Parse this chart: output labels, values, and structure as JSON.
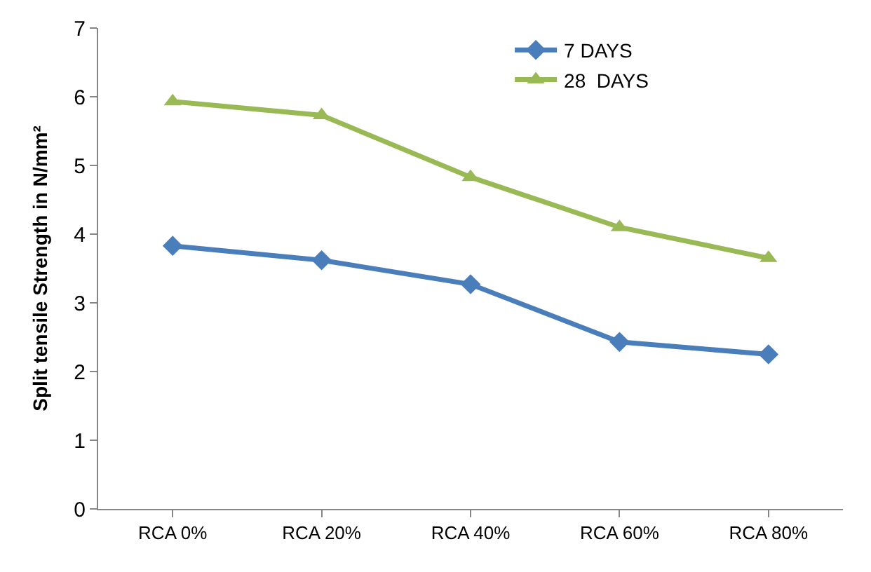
{
  "chart_data": {
    "type": "line",
    "ylabel": "Split tensile Strength in N/mm²",
    "categories": [
      "RCA 0%",
      "RCA 20%",
      "RCA 40%",
      "RCA 60%",
      "RCA 80%"
    ],
    "series": [
      {
        "name": "7 DAYS",
        "color": "#4a7ebb",
        "marker": "diamond",
        "values": [
          3.83,
          3.62,
          3.27,
          2.43,
          2.25
        ]
      },
      {
        "name": "28  DAYS",
        "color": "#98b954",
        "marker": "triangle",
        "values": [
          5.93,
          5.73,
          4.83,
          4.1,
          3.65
        ]
      }
    ],
    "ylim": [
      0,
      7
    ],
    "yticks": [
      0,
      1,
      2,
      3,
      4,
      5,
      6,
      7
    ],
    "legend": "top right",
    "line_style": "solid"
  }
}
